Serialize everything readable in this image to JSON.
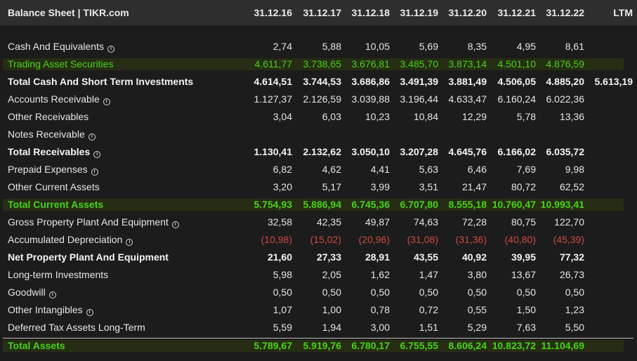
{
  "header": {
    "title": "Balance Sheet | TIKR.com",
    "columns": [
      "31.12.16",
      "31.12.17",
      "31.12.18",
      "31.12.19",
      "31.12.20",
      "31.12.21",
      "31.12.22",
      "LTM"
    ]
  },
  "info_icon": "info-circle-icon",
  "colors": {
    "background": "#1c1c1c",
    "header_bg": "#2e2e2e",
    "accent_green": "#4ad21a",
    "negative_red": "#cc4a44",
    "highlight_band": "#262d14"
  },
  "rows": [
    {
      "label": "Cash And Equivalents",
      "info": true,
      "style": "normal",
      "values": [
        "2,74",
        "5,88",
        "10,05",
        "5,69",
        "8,35",
        "4,95",
        "8,61",
        ""
      ]
    },
    {
      "label": "Trading Asset Securities",
      "info": false,
      "style": "green",
      "values": [
        "4.611,77",
        "3.738,65",
        "3.676,81",
        "3.485,70",
        "3.873,14",
        "4.501,10",
        "4.876,59",
        ""
      ]
    },
    {
      "label": "Total Cash And Short Term Investments",
      "info": false,
      "style": "bold",
      "values": [
        "4.614,51",
        "3.744,53",
        "3.686,86",
        "3.491,39",
        "3.881,49",
        "4.506,05",
        "4.885,20",
        "5.613,19"
      ]
    },
    {
      "label": "Accounts Receivable",
      "info": true,
      "style": "normal",
      "values": [
        "1.127,37",
        "2.126,59",
        "3.039,88",
        "3.196,44",
        "4.633,47",
        "6.160,24",
        "6.022,36",
        ""
      ]
    },
    {
      "label": "Other Receivables",
      "info": false,
      "style": "normal",
      "values": [
        "3,04",
        "6,03",
        "10,23",
        "10,84",
        "12,29",
        "5,78",
        "13,36",
        ""
      ]
    },
    {
      "label": "Notes Receivable",
      "info": true,
      "style": "normal",
      "values": [
        "",
        "",
        "",
        "",
        "",
        "",
        "",
        ""
      ]
    },
    {
      "label": "Total Receivables",
      "info": true,
      "style": "bold",
      "values": [
        "1.130,41",
        "2.132,62",
        "3.050,10",
        "3.207,28",
        "4.645,76",
        "6.166,02",
        "6.035,72",
        ""
      ]
    },
    {
      "label": "Prepaid Expenses",
      "info": true,
      "style": "normal",
      "values": [
        "6,82",
        "4,62",
        "4,41",
        "5,63",
        "6,46",
        "7,69",
        "9,98",
        ""
      ]
    },
    {
      "label": "Other Current Assets",
      "info": false,
      "style": "normal",
      "values": [
        "3,20",
        "5,17",
        "3,99",
        "3,51",
        "21,47",
        "80,72",
        "62,52",
        ""
      ]
    },
    {
      "label": "Total Current Assets",
      "info": false,
      "style": "green-bold",
      "values": [
        "5.754,93",
        "5.886,94",
        "6.745,36",
        "6.707,80",
        "8.555,18",
        "10.760,47",
        "10.993,41",
        ""
      ]
    },
    {
      "label": "Gross Property Plant And Equipment",
      "info": true,
      "style": "normal",
      "values": [
        "32,58",
        "42,35",
        "49,87",
        "74,63",
        "72,28",
        "80,75",
        "122,70",
        ""
      ]
    },
    {
      "label": "Accumulated Depreciation",
      "info": true,
      "style": "negative",
      "values": [
        "(10,98)",
        "(15,02)",
        "(20,96)",
        "(31,08)",
        "(31,36)",
        "(40,80)",
        "(45,39)",
        ""
      ]
    },
    {
      "label": "Net Property Plant And Equipment",
      "info": false,
      "style": "bold",
      "values": [
        "21,60",
        "27,33",
        "28,91",
        "43,55",
        "40,92",
        "39,95",
        "77,32",
        ""
      ]
    },
    {
      "label": "Long-term Investments",
      "info": false,
      "style": "normal",
      "values": [
        "5,98",
        "2,05",
        "1,62",
        "1,47",
        "3,80",
        "13,67",
        "26,73",
        ""
      ]
    },
    {
      "label": "Goodwill",
      "info": true,
      "style": "normal",
      "values": [
        "0,50",
        "0,50",
        "0,50",
        "0,50",
        "0,50",
        "0,50",
        "0,50",
        ""
      ]
    },
    {
      "label": "Other Intangibles",
      "info": true,
      "style": "normal",
      "values": [
        "1,07",
        "1,00",
        "0,78",
        "0,72",
        "0,55",
        "1,50",
        "1,23",
        ""
      ]
    },
    {
      "label": "Deferred Tax Assets Long-Term",
      "info": false,
      "style": "normal",
      "values": [
        "5,59",
        "1,94",
        "3,00",
        "1,51",
        "5,29",
        "7,63",
        "5,50",
        ""
      ]
    },
    {
      "label": "Total Assets",
      "info": false,
      "style": "green-bold",
      "values": [
        "5.789,67",
        "5.919,76",
        "6.780,17",
        "6.755,55",
        "8.606,24",
        "10.823,72",
        "11.104,69",
        ""
      ]
    }
  ]
}
